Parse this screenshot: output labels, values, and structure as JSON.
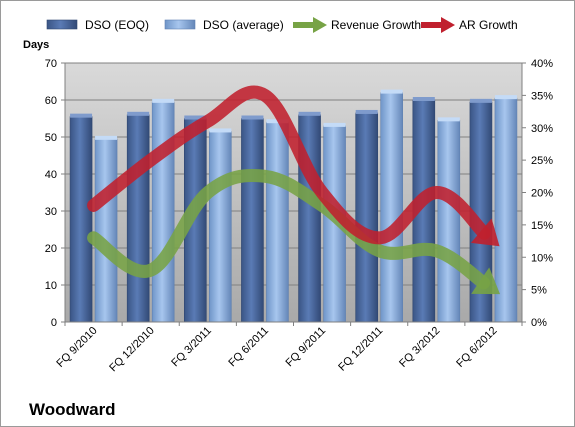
{
  "chart_data": {
    "type": "bar",
    "company": "Woodward",
    "ylabel_left": "Days",
    "categories": [
      "FQ 9/2010",
      "FQ 12/2010",
      "FQ 3/2011",
      "FQ 6/2011",
      "FQ 9/2011",
      "FQ 12/2011",
      "FQ 3/2012",
      "FQ 6/2012"
    ],
    "left_axis": {
      "min": 0,
      "max": 70,
      "step": 10
    },
    "right_axis": {
      "min": 0,
      "max": 40,
      "step": 5,
      "unit": "%"
    },
    "series": [
      {
        "name": "DSO (EOQ)",
        "axis": "left",
        "kind": "bar",
        "values": [
          55.5,
          56,
          55,
          55,
          56,
          56.5,
          60,
          59.5
        ]
      },
      {
        "name": "DSO (average)",
        "axis": "left",
        "kind": "bar",
        "values": [
          49.5,
          59.5,
          51.5,
          54,
          53,
          62,
          54.5,
          60.5
        ]
      },
      {
        "name": "Revenue Growth",
        "axis": "right",
        "kind": "arrow-line",
        "values": [
          13,
          8,
          20,
          22.5,
          18,
          11,
          11,
          5
        ]
      },
      {
        "name": "AR Growth",
        "axis": "right",
        "kind": "arrow-line",
        "values": [
          18,
          25,
          31,
          35,
          20,
          13,
          20,
          12.5
        ]
      }
    ],
    "colors": {
      "bar_eoq": "#4f6fa8",
      "bar_avg": "#8fb4e3",
      "revenue_growth": "#77a345",
      "ar_growth": "#c0202e",
      "plot_top": "#d9d9d9",
      "plot_bottom": "#a9a9a9"
    },
    "grid": true,
    "legend": "top"
  }
}
